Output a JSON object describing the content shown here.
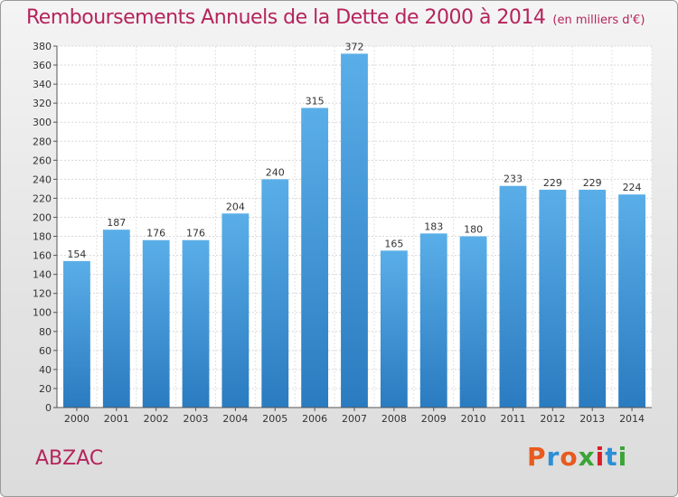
{
  "header": {
    "title": "Remboursements Annuels de la Dette de 2000 à 2014",
    "subtitle": "(en milliers d'€)"
  },
  "footer": {
    "city": "ABZAC",
    "logo_text": "Proxiti",
    "logo_colors": [
      "#e85a1e",
      "#2d8fd6",
      "#e85a1e",
      "#3aa537",
      "#d61f2a",
      "#2d8fd6",
      "#3aa537"
    ]
  },
  "chart_data": {
    "type": "bar",
    "categories": [
      "2000",
      "2001",
      "2002",
      "2003",
      "2004",
      "2005",
      "2006",
      "2007",
      "2008",
      "2009",
      "2010",
      "2011",
      "2012",
      "2013",
      "2014"
    ],
    "values": [
      154,
      187,
      176,
      176,
      204,
      240,
      315,
      372,
      165,
      183,
      180,
      233,
      229,
      229,
      224
    ],
    "title": "Remboursements Annuels de la Dette de 2000 à 2014",
    "xlabel": "",
    "ylabel": "",
    "ylim": [
      0,
      380
    ],
    "ytick_step": 20,
    "grid": true,
    "bar_color_top": "#5aaee8",
    "bar_color_bottom": "#2a7bc0"
  }
}
